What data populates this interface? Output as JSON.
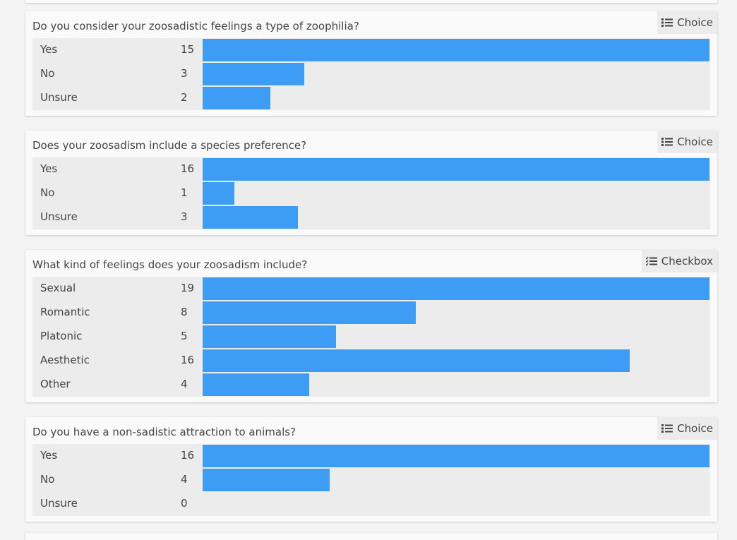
{
  "questions": [
    {
      "title": "Do you consider your zoosadistic feelings a type of zoophilia?",
      "type_label": "Choice",
      "type_icon": "list-icon",
      "max": 15,
      "options": [
        {
          "label": "Yes",
          "count": 15
        },
        {
          "label": "No",
          "count": 3
        },
        {
          "label": "Unsure",
          "count": 2
        }
      ]
    },
    {
      "title": "Does your zoosadism include a species preference?",
      "type_label": "Choice",
      "type_icon": "list-icon",
      "max": 16,
      "options": [
        {
          "label": "Yes",
          "count": 16
        },
        {
          "label": "No",
          "count": 1
        },
        {
          "label": "Unsure",
          "count": 3
        }
      ]
    },
    {
      "title": "What kind of feelings does your zoosadism include?",
      "type_label": "Checkbox",
      "type_icon": "checklist-icon",
      "max": 19,
      "options": [
        {
          "label": "Sexual",
          "count": 19
        },
        {
          "label": "Romantic",
          "count": 8
        },
        {
          "label": "Platonic",
          "count": 5
        },
        {
          "label": "Aesthetic",
          "count": 16
        },
        {
          "label": "Other",
          "count": 4
        }
      ]
    },
    {
      "title": "Do you have a non-sadistic attraction to animals?",
      "type_label": "Choice",
      "type_icon": "list-icon",
      "max": 16,
      "options": [
        {
          "label": "Yes",
          "count": 16
        },
        {
          "label": "No",
          "count": 4
        },
        {
          "label": "Unsure",
          "count": 0
        }
      ]
    }
  ],
  "colors": {
    "bar": "#3d9df4",
    "row_bg": "#ececec",
    "card_bg": "#fafafa"
  }
}
